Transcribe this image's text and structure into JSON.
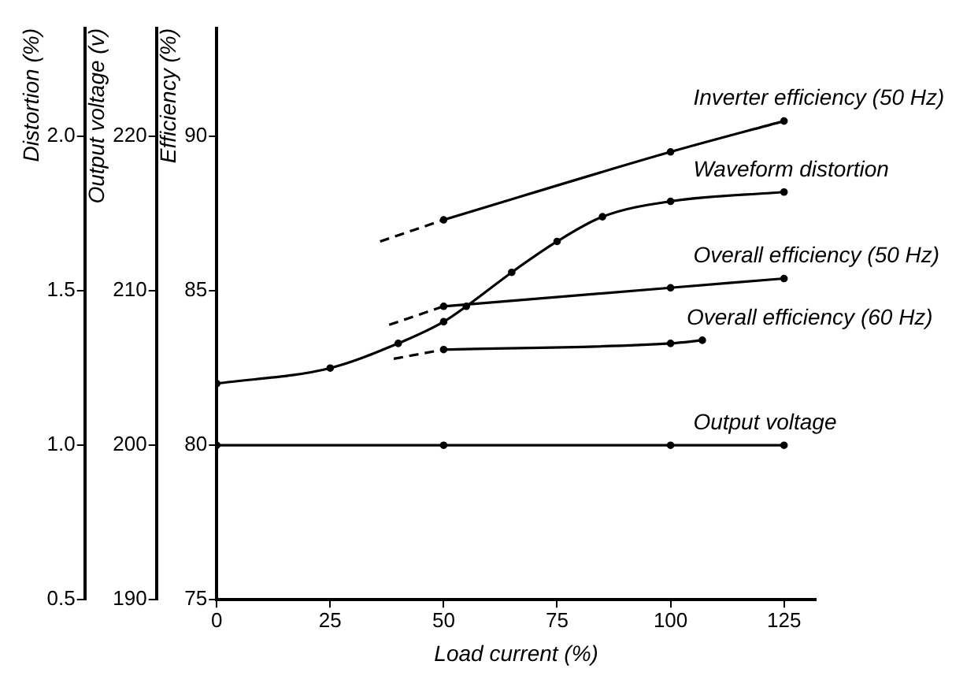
{
  "chart_data": {
    "type": "line",
    "xlabel": "Load current (%)",
    "ylabel": "Efficiency (%)",
    "y2label": "Output voltage (v)",
    "y3label": "Distortion (%)",
    "xlim": [
      0,
      132
    ],
    "xticks": [
      0,
      25,
      50,
      75,
      100,
      125
    ],
    "ylim": [
      75,
      93.5
    ],
    "yticks": [
      75,
      80,
      85,
      90
    ],
    "y2lim": [
      190,
      227
    ],
    "y2ticks": [
      190,
      200,
      210,
      220
    ],
    "y3lim": [
      0.5,
      2.35
    ],
    "y3ticks": [
      {
        "value": 0.5,
        "label": "0.5"
      },
      {
        "value": 1,
        "label": "1.0"
      },
      {
        "value": 1.5,
        "label": "1.5"
      },
      {
        "value": 2,
        "label": "2.0"
      }
    ],
    "grid": false,
    "legend": false,
    "marker": "circle",
    "series": [
      {
        "name": "Inverter efficiency (50 Hz)",
        "color": "#000000",
        "x": [
          50,
          100,
          125
        ],
        "values": [
          87.3,
          89.5,
          90.5
        ]
      },
      {
        "color": "#000000",
        "line_style": "dashed",
        "marker": "none",
        "x": [
          36,
          50
        ],
        "values": [
          86.6,
          87.3
        ]
      },
      {
        "name": "Waveform distortion",
        "color": "#000000",
        "axis": "y3",
        "x": [
          0,
          25,
          40,
          50,
          55,
          65,
          75,
          85,
          100,
          125
        ],
        "values": [
          1.2,
          1.25,
          1.33,
          1.4,
          1.45,
          1.56,
          1.66,
          1.74,
          1.79,
          1.82
        ]
      },
      {
        "name": "Overall efficiency (50 Hz)",
        "color": "#000000",
        "x": [
          50,
          100,
          125
        ],
        "values": [
          84.5,
          85.1,
          85.4
        ]
      },
      {
        "color": "#000000",
        "line_style": "dashed",
        "marker": "none",
        "x": [
          38,
          50
        ],
        "values": [
          83.9,
          84.5
        ]
      },
      {
        "name": "Overall efficiency (60 Hz)",
        "color": "#000000",
        "x": [
          50,
          100,
          107
        ],
        "values": [
          83.1,
          83.3,
          83.4
        ]
      },
      {
        "color": "#000000",
        "line_style": "dashed",
        "marker": "none",
        "x": [
          39,
          50
        ],
        "values": [
          82.8,
          83.1
        ]
      },
      {
        "name": "Output voltage",
        "color": "#000000",
        "axis": "y2",
        "x": [
          0,
          50,
          100,
          125
        ],
        "values": [
          200,
          200,
          200,
          200
        ]
      }
    ]
  }
}
